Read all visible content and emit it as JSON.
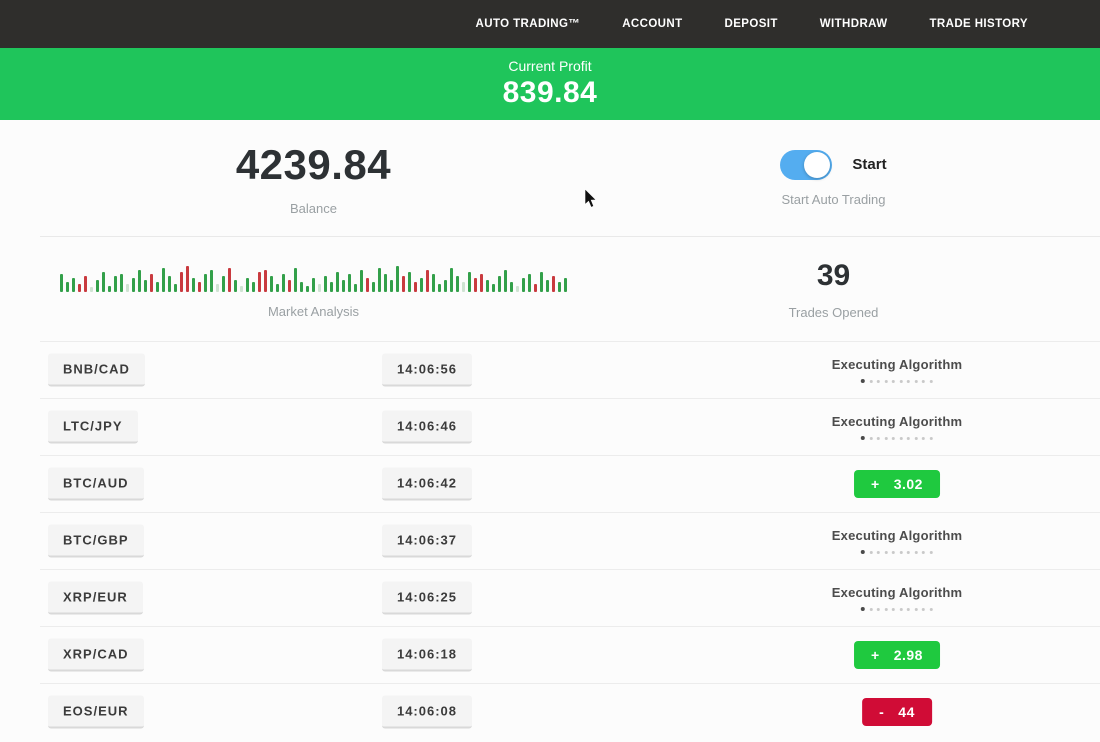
{
  "navbar": {
    "items": [
      {
        "label": "AUTO TRADING™"
      },
      {
        "label": "ACCOUNT"
      },
      {
        "label": "DEPOSIT"
      },
      {
        "label": "WITHDRAW"
      },
      {
        "label": "TRADE HISTORY"
      }
    ]
  },
  "profit_banner": {
    "label": "Current Profit",
    "value": "839.84"
  },
  "stats": {
    "balance": {
      "value": "4239.84",
      "caption": "Balance"
    },
    "auto_trading": {
      "toggle_on": true,
      "toggle_label": "Start",
      "caption": "Start Auto Trading"
    },
    "market_analysis": {
      "caption": "Market Analysis",
      "bars": [
        [
          18,
          "g"
        ],
        [
          10,
          "g"
        ],
        [
          14,
          "g"
        ],
        [
          8,
          "r"
        ],
        [
          16,
          "r"
        ],
        [
          5,
          "lg"
        ],
        [
          12,
          "g"
        ],
        [
          20,
          "g"
        ],
        [
          6,
          "g"
        ],
        [
          16,
          "g"
        ],
        [
          18,
          "g"
        ],
        [
          8,
          "lg"
        ],
        [
          14,
          "g"
        ],
        [
          22,
          "g"
        ],
        [
          12,
          "g"
        ],
        [
          18,
          "r"
        ],
        [
          10,
          "g"
        ],
        [
          24,
          "g"
        ],
        [
          16,
          "g"
        ],
        [
          8,
          "g"
        ],
        [
          20,
          "r"
        ],
        [
          26,
          "r"
        ],
        [
          14,
          "g"
        ],
        [
          10,
          "r"
        ],
        [
          18,
          "g"
        ],
        [
          22,
          "g"
        ],
        [
          8,
          "lg"
        ],
        [
          16,
          "g"
        ],
        [
          24,
          "r"
        ],
        [
          12,
          "g"
        ],
        [
          6,
          "lg"
        ],
        [
          14,
          "g"
        ],
        [
          10,
          "g"
        ],
        [
          20,
          "r"
        ],
        [
          22,
          "r"
        ],
        [
          16,
          "g"
        ],
        [
          8,
          "g"
        ],
        [
          18,
          "g"
        ],
        [
          12,
          "r"
        ],
        [
          24,
          "g"
        ],
        [
          10,
          "g"
        ],
        [
          6,
          "g"
        ],
        [
          14,
          "g"
        ],
        [
          8,
          "lg"
        ],
        [
          16,
          "g"
        ],
        [
          10,
          "g"
        ],
        [
          20,
          "g"
        ],
        [
          12,
          "g"
        ],
        [
          18,
          "g"
        ],
        [
          8,
          "g"
        ],
        [
          22,
          "g"
        ],
        [
          14,
          "r"
        ],
        [
          10,
          "g"
        ],
        [
          24,
          "g"
        ],
        [
          18,
          "g"
        ],
        [
          12,
          "g"
        ],
        [
          26,
          "g"
        ],
        [
          16,
          "r"
        ],
        [
          20,
          "g"
        ],
        [
          10,
          "r"
        ],
        [
          14,
          "g"
        ],
        [
          22,
          "r"
        ],
        [
          18,
          "g"
        ],
        [
          8,
          "g"
        ],
        [
          12,
          "g"
        ],
        [
          24,
          "g"
        ],
        [
          16,
          "g"
        ],
        [
          10,
          "lg"
        ],
        [
          20,
          "g"
        ],
        [
          14,
          "r"
        ],
        [
          18,
          "r"
        ],
        [
          12,
          "g"
        ],
        [
          8,
          "g"
        ],
        [
          16,
          "g"
        ],
        [
          22,
          "g"
        ],
        [
          10,
          "g"
        ],
        [
          6,
          "lg"
        ],
        [
          14,
          "g"
        ],
        [
          18,
          "g"
        ],
        [
          8,
          "r"
        ],
        [
          20,
          "g"
        ],
        [
          12,
          "g"
        ],
        [
          16,
          "r"
        ],
        [
          10,
          "g"
        ],
        [
          14,
          "g"
        ]
      ]
    },
    "trades_opened": {
      "value": "39",
      "caption": "Trades Opened"
    }
  },
  "trades": [
    {
      "pair": "BNB/CAD",
      "time": "14:06:56",
      "status": "executing",
      "status_label": "Executing Algorithm"
    },
    {
      "pair": "LTC/JPY",
      "time": "14:06:46",
      "status": "executing",
      "status_label": "Executing Algorithm"
    },
    {
      "pair": "BTC/AUD",
      "time": "14:06:42",
      "status": "profit",
      "sign": "+",
      "result": "3.02"
    },
    {
      "pair": "BTC/GBP",
      "time": "14:06:37",
      "status": "executing",
      "status_label": "Executing Algorithm"
    },
    {
      "pair": "XRP/EUR",
      "time": "14:06:25",
      "status": "executing",
      "status_label": "Executing Algorithm"
    },
    {
      "pair": "XRP/CAD",
      "time": "14:06:18",
      "status": "profit",
      "sign": "+",
      "result": "2.98"
    },
    {
      "pair": "EOS/EUR",
      "time": "14:06:08",
      "status": "loss",
      "sign": "-",
      "result": "44"
    }
  ],
  "colors": {
    "banner_green": "#1fc55b",
    "badge_green": "#1fc93f",
    "badge_red": "#d00c36",
    "toggle_blue": "#54adf0",
    "navbar_bg": "#2f2e2c",
    "bar_green": "#33a04a",
    "bar_red": "#c93a3f",
    "bar_faded_green": "#cfe3d2"
  }
}
